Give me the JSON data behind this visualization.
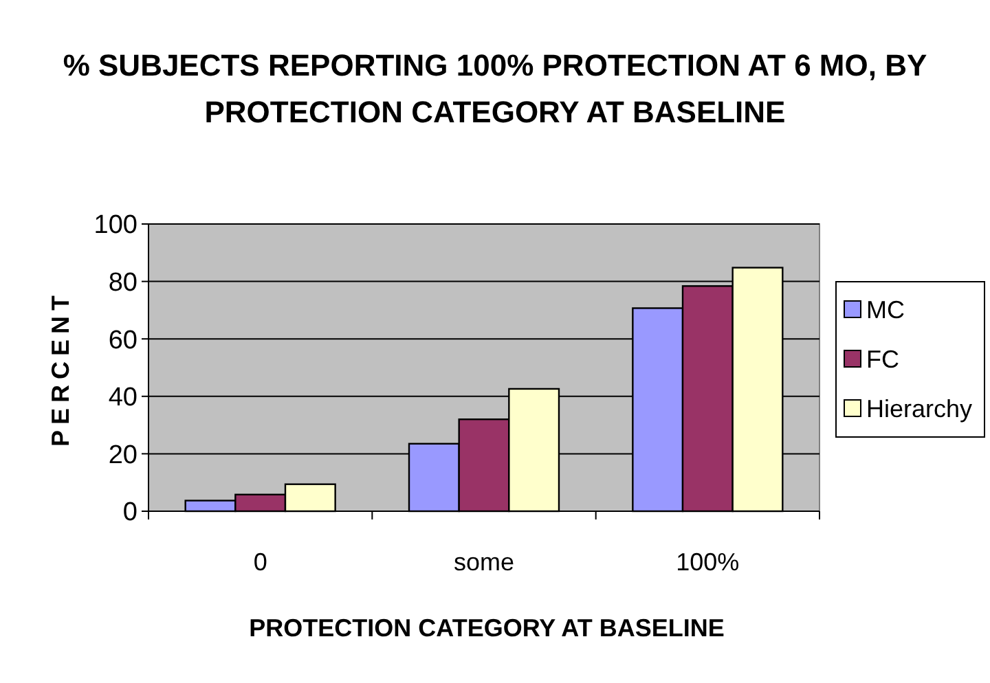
{
  "chart_data": {
    "type": "bar",
    "title": "% SUBJECTS REPORTING 100% PROTECTION AT 6 MO, BY PROTECTION CATEGORY AT BASELINE",
    "xlabel": "PROTECTION CATEGORY AT BASELINE",
    "ylabel": "PERCENT",
    "categories": [
      "0",
      "some",
      "100%"
    ],
    "series": [
      {
        "name": "MC",
        "color": "#9999ff",
        "values": [
          3.7,
          23.5,
          70.7
        ]
      },
      {
        "name": "FC",
        "color": "#993366",
        "values": [
          5.8,
          32,
          78.4
        ]
      },
      {
        "name": "Hierarchy",
        "color": "#ffffcc",
        "values": [
          9.4,
          42.6,
          84.8
        ]
      }
    ],
    "ylim": [
      0,
      100
    ],
    "yticks": [
      0,
      20,
      40,
      60,
      80,
      100
    ],
    "grid": "y",
    "legend": "right"
  }
}
